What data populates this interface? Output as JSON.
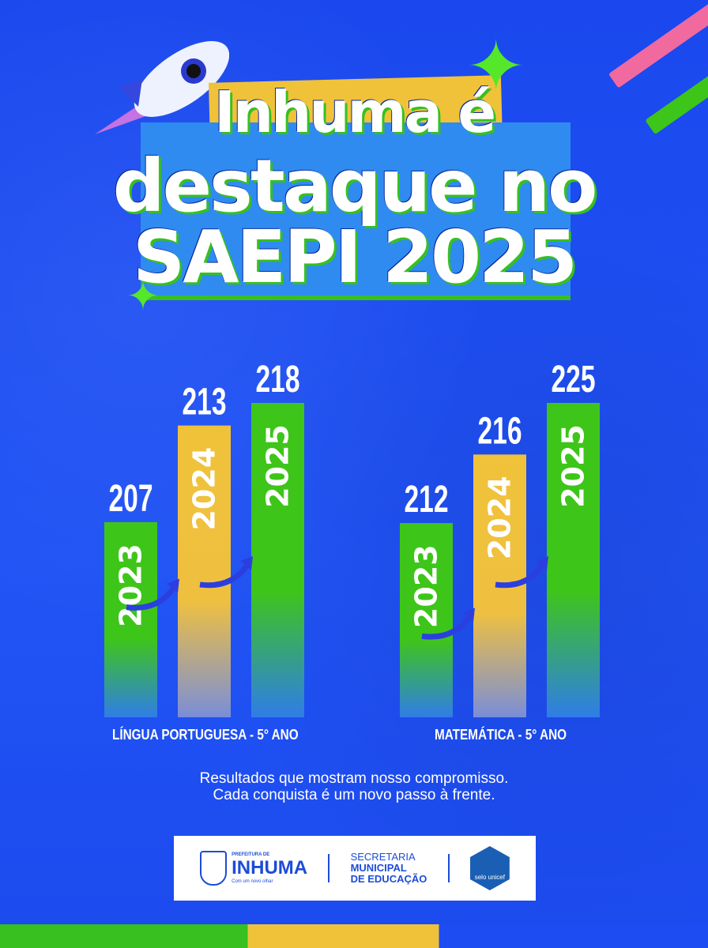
{
  "title": {
    "line1": "Inhuma é",
    "line2": "destaque no",
    "line3": "SAEPI 2025"
  },
  "colors": {
    "background": "#1d4cf2",
    "green": "#3ec51a",
    "yellow": "#f0c23a",
    "white": "#ffffff"
  },
  "chart_data": [
    {
      "type": "bar",
      "title": "LÍNGUA PORTUGUESA - 5° ANO",
      "categories": [
        "2023",
        "2024",
        "2025"
      ],
      "values": [
        207,
        213,
        218
      ],
      "bar_colors": [
        "#3ec51a",
        "#f0c23a",
        "#3ec51a"
      ],
      "ylim": [
        189,
        218
      ]
    },
    {
      "type": "bar",
      "title": "MATEMÁTICA - 5° ANO",
      "categories": [
        "2023",
        "2024",
        "2025"
      ],
      "values": [
        212,
        216,
        225
      ],
      "bar_colors": [
        "#3ec51a",
        "#f0c23a",
        "#3ec51a"
      ],
      "ylim": [
        191,
        225
      ]
    }
  ],
  "slogan": {
    "line1": "Resultados que mostram nosso compromisso.",
    "line2": "Cada conquista é um novo passo à frente."
  },
  "footer": {
    "city_small": "PREFEITURA DE",
    "city": "INHUMA",
    "city_tagline": "Com um novo olhar",
    "sec_line1": "SECRETARIA",
    "sec_line2": "MUNICIPAL",
    "sec_line3": "DE EDUCAÇÃO",
    "seal": "selo unicef"
  }
}
